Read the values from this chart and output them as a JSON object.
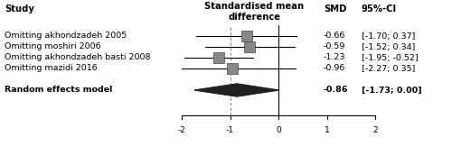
{
  "studies": [
    {
      "label": "Omitting akhondzadeh 2005",
      "smd": -0.66,
      "ci_low": -1.7,
      "ci_high": 0.37,
      "smd_str": "-0.66",
      "ci_str": "[-1.70; 0.37]"
    },
    {
      "label": "Omitting moshiri 2006",
      "smd": -0.59,
      "ci_low": -1.52,
      "ci_high": 0.34,
      "smd_str": "-0.59",
      "ci_str": "[-1.52; 0.34]"
    },
    {
      "label": "Omitting akhondzadeh basti 2008",
      "smd": -1.23,
      "ci_low": -1.95,
      "ci_high": -0.52,
      "smd_str": "-1.23",
      "ci_str": "[-1.95; -0.52]"
    },
    {
      "label": "Omitting mazidi 2016",
      "smd": -0.96,
      "ci_low": -2.27,
      "ci_high": 0.35,
      "smd_str": "-0.96",
      "ci_str": "[-2.27; 0.35]"
    }
  ],
  "random_effects": {
    "label": "Random effects model",
    "smd": -0.86,
    "ci_low": -1.73,
    "ci_high": 0.0,
    "smd_str": "-0.86",
    "ci_str": "[-1.73; 0.00]"
  },
  "x_min": -2,
  "x_max": 2,
  "x_ticks": [
    -2,
    -1,
    0,
    1,
    2
  ],
  "header_left": "Study",
  "header_center": "Standardised mean\ndifference",
  "header_smd": "SMD",
  "header_ci": "95%-CI",
  "box_color": "#888888",
  "diamond_color": "#222222",
  "line_color": "#000000",
  "text_color": "#000000",
  "label_fontsize": 6.8,
  "header_fontsize": 7.2
}
